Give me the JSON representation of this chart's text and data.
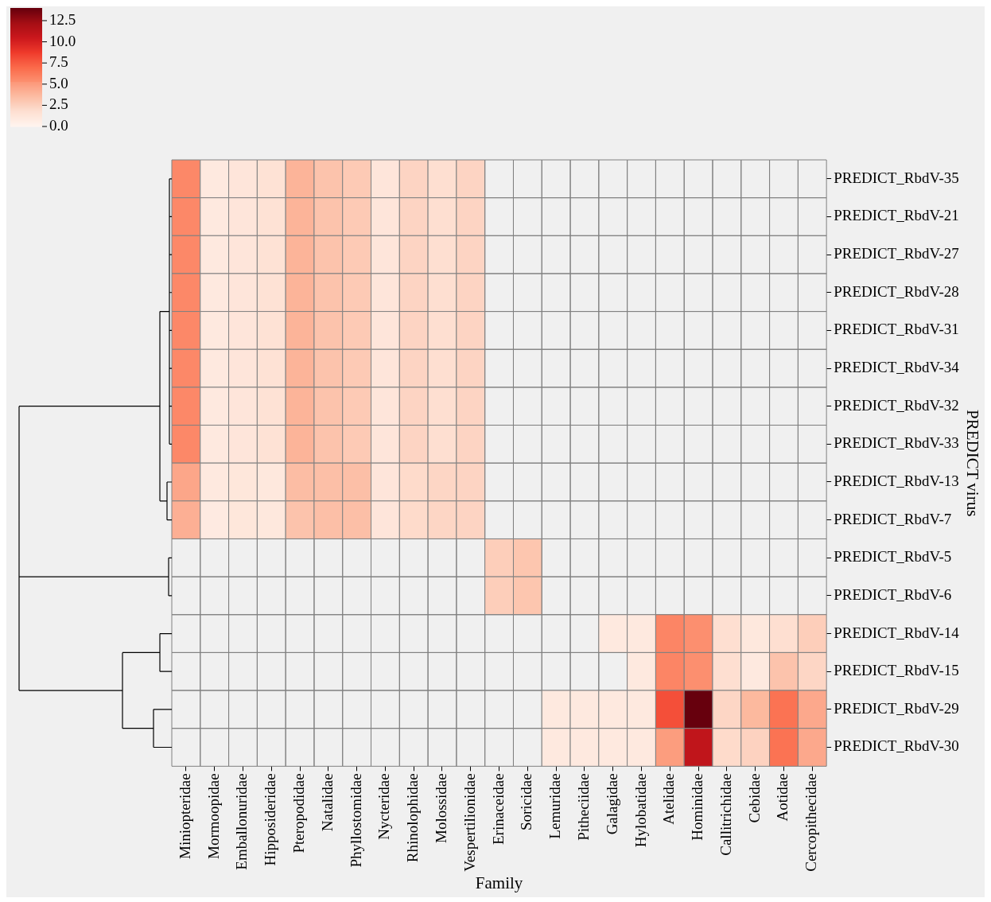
{
  "chart_data": {
    "type": "heatmap",
    "xlabel": "Family",
    "ylabel": "PREDICT virus",
    "categories": [
      "Miniopteridae",
      "Mormoopidae",
      "Emballonuridae",
      "Hipposideridae",
      "Pteropodidae",
      "Natalidae",
      "Phyllostomidae",
      "Nycteridae",
      "Rhinolophidae",
      "Molossidae",
      "Vespertilionidae",
      "Erinaceidae",
      "Soricidae",
      "Lemuridae",
      "Pitheciidae",
      "Galagidae",
      "Hylobatidae",
      "Atelidae",
      "Hominidae",
      "Callitrichidae",
      "Cebidae",
      "Aotidae",
      "Cercopithecidae"
    ],
    "y_categories": [
      "PREDICT_RbdV-35",
      "PREDICT_RbdV-21",
      "PREDICT_RbdV-27",
      "PREDICT_RbdV-28",
      "PREDICT_RbdV-31",
      "PREDICT_RbdV-34",
      "PREDICT_RbdV-32",
      "PREDICT_RbdV-33",
      "PREDICT_RbdV-13",
      "PREDICT_RbdV-7",
      "PREDICT_RbdV-5",
      "PREDICT_RbdV-6",
      "PREDICT_RbdV-14",
      "PREDICT_RbdV-15",
      "PREDICT_RbdV-29",
      "PREDICT_RbdV-30"
    ],
    "cells": [
      [
        5.7,
        1.0,
        1.3,
        1.6,
        3.8,
        3.1,
        2.8,
        1.3,
        2.3,
        1.8,
        2.3,
        null,
        null,
        null,
        null,
        null,
        null,
        null,
        null,
        null,
        null,
        null,
        null
      ],
      [
        5.7,
        1.0,
        1.3,
        1.6,
        3.8,
        3.1,
        2.8,
        1.3,
        2.3,
        1.8,
        2.3,
        null,
        null,
        null,
        null,
        null,
        null,
        null,
        null,
        null,
        null,
        null,
        null
      ],
      [
        5.7,
        1.0,
        1.3,
        1.6,
        3.8,
        3.1,
        2.8,
        1.3,
        2.3,
        1.8,
        2.3,
        null,
        null,
        null,
        null,
        null,
        null,
        null,
        null,
        null,
        null,
        null,
        null
      ],
      [
        5.7,
        1.0,
        1.3,
        1.6,
        3.8,
        3.1,
        2.8,
        1.3,
        2.3,
        1.8,
        2.3,
        null,
        null,
        null,
        null,
        null,
        null,
        null,
        null,
        null,
        null,
        null,
        null
      ],
      [
        5.7,
        1.0,
        1.3,
        1.6,
        3.8,
        3.1,
        2.8,
        1.3,
        2.3,
        1.8,
        2.3,
        null,
        null,
        null,
        null,
        null,
        null,
        null,
        null,
        null,
        null,
        null,
        null
      ],
      [
        5.7,
        1.0,
        1.3,
        1.6,
        3.8,
        3.1,
        2.8,
        1.3,
        2.3,
        1.8,
        2.3,
        null,
        null,
        null,
        null,
        null,
        null,
        null,
        null,
        null,
        null,
        null,
        null
      ],
      [
        5.7,
        1.0,
        1.3,
        1.6,
        3.8,
        3.1,
        2.8,
        1.3,
        2.3,
        1.8,
        2.3,
        null,
        null,
        null,
        null,
        null,
        null,
        null,
        null,
        null,
        null,
        null,
        null
      ],
      [
        5.7,
        1.0,
        1.3,
        1.6,
        3.8,
        3.1,
        2.8,
        1.3,
        2.3,
        1.8,
        2.3,
        null,
        null,
        null,
        null,
        null,
        null,
        null,
        null,
        null,
        null,
        null,
        null
      ],
      [
        4.4,
        1.0,
        1.2,
        1.1,
        3.4,
        3.3,
        3.3,
        1.3,
        2.0,
        2.2,
        2.3,
        null,
        null,
        null,
        null,
        null,
        null,
        null,
        null,
        null,
        null,
        null,
        null
      ],
      [
        4.0,
        0.9,
        1.2,
        1.1,
        3.1,
        3.3,
        3.3,
        1.3,
        2.0,
        2.2,
        2.3,
        null,
        null,
        null,
        null,
        null,
        null,
        null,
        null,
        null,
        null,
        null,
        null
      ],
      [
        null,
        null,
        null,
        null,
        null,
        null,
        null,
        null,
        null,
        null,
        null,
        2.6,
        3.0,
        null,
        null,
        null,
        null,
        null,
        null,
        null,
        null,
        null,
        null
      ],
      [
        null,
        null,
        null,
        null,
        null,
        null,
        null,
        null,
        null,
        null,
        null,
        2.6,
        3.0,
        null,
        null,
        null,
        null,
        null,
        null,
        null,
        null,
        null,
        null
      ],
      [
        null,
        null,
        null,
        null,
        null,
        null,
        null,
        null,
        null,
        null,
        null,
        null,
        null,
        null,
        null,
        1.0,
        1.0,
        5.8,
        5.4,
        1.8,
        1.1,
        1.8,
        2.6
      ],
      [
        null,
        null,
        null,
        null,
        null,
        null,
        null,
        null,
        null,
        null,
        null,
        null,
        null,
        null,
        null,
        null,
        1.0,
        5.8,
        5.4,
        1.8,
        1.0,
        3.1,
        2.2
      ],
      [
        null,
        null,
        null,
        null,
        null,
        null,
        null,
        null,
        null,
        null,
        null,
        null,
        null,
        1.0,
        1.0,
        1.0,
        1.0,
        8.0,
        14.0,
        2.2,
        3.6,
        6.6,
        4.3
      ],
      [
        null,
        null,
        null,
        null,
        null,
        null,
        null,
        null,
        null,
        null,
        null,
        null,
        null,
        1.0,
        1.0,
        1.0,
        1.0,
        4.8,
        11.0,
        2.0,
        2.4,
        6.6,
        4.3
      ]
    ],
    "clim": [
      0,
      14
    ],
    "cticks": [
      {
        "value": 0,
        "label": "0.0"
      },
      {
        "value": 2.5,
        "label": "2.5"
      },
      {
        "value": 5,
        "label": "5.0"
      },
      {
        "value": 7.5,
        "label": "7.5"
      },
      {
        "value": 10,
        "label": "10.0"
      },
      {
        "value": 12.5,
        "label": "12.5"
      }
    ]
  }
}
